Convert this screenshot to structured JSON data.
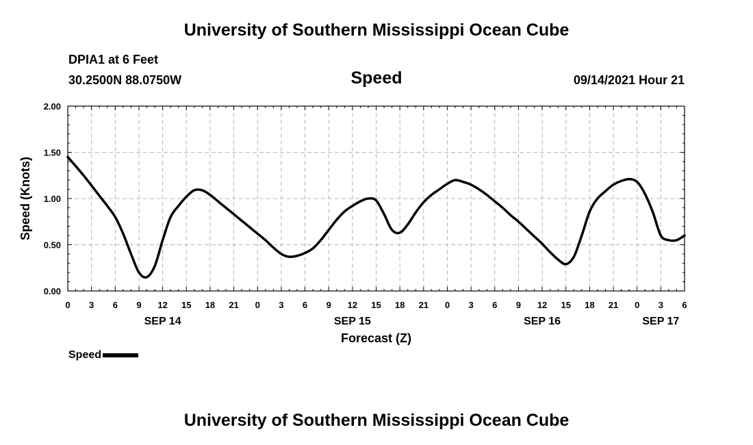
{
  "header": {
    "org_title": "University of Southern Mississippi Ocean Cube",
    "station": "DPIA1 at 6 Feet",
    "coords": "30.2500N  88.0750W",
    "datetime": "09/14/2021 Hour 21"
  },
  "footer": {
    "org_title": "University of Southern Mississippi Ocean Cube"
  },
  "legend": {
    "label": "Speed"
  },
  "chart_data": {
    "type": "line",
    "title": "Speed",
    "xlabel": "Forecast (Z)",
    "ylabel": "Speed (Knots)",
    "ylim": [
      0,
      2
    ],
    "xlim": [
      0,
      78
    ],
    "x_unit": "hours since SEP 14 00Z",
    "y_ticks": [
      "0.00",
      "0.50",
      "1.00",
      "1.50",
      "2.00"
    ],
    "y_tick_values": [
      0,
      0.5,
      1,
      1.5,
      2
    ],
    "x_tick_labels": [
      "0",
      "3",
      "6",
      "9",
      "12",
      "15",
      "18",
      "21",
      "0",
      "3",
      "6",
      "9",
      "12",
      "15",
      "18",
      "21",
      "0",
      "3",
      "6",
      "9",
      "12",
      "15",
      "18",
      "21",
      "0",
      "3",
      "6"
    ],
    "day_labels": [
      {
        "label": "SEP 14",
        "hour": 12
      },
      {
        "label": "SEP 15",
        "hour": 36
      },
      {
        "label": "SEP 16",
        "hour": 60
      },
      {
        "label": "SEP 17",
        "hour": 75
      }
    ],
    "grid": true,
    "series": [
      {
        "name": "Speed",
        "color": "#000000",
        "x": [
          0,
          2,
          4,
          5,
          6,
          7,
          8,
          9,
          10,
          11,
          12,
          13,
          14,
          15,
          16,
          17,
          18,
          19,
          20,
          21,
          22,
          23,
          24,
          25,
          26,
          27,
          28,
          29,
          30,
          31,
          32,
          33,
          34,
          35,
          36,
          37,
          38,
          39,
          40,
          41,
          42,
          43,
          44,
          45,
          46,
          47,
          48,
          49,
          50,
          51,
          52,
          53,
          54,
          55,
          56,
          57,
          58,
          59,
          60,
          61,
          62,
          63,
          64,
          65,
          66,
          67,
          68,
          69,
          70,
          71,
          72,
          73,
          74,
          75,
          76,
          77,
          78
        ],
        "y": [
          1.45,
          1.25,
          1.03,
          0.92,
          0.8,
          0.62,
          0.4,
          0.2,
          0.15,
          0.27,
          0.55,
          0.8,
          0.92,
          1.02,
          1.09,
          1.09,
          1.04,
          0.97,
          0.9,
          0.83,
          0.76,
          0.69,
          0.62,
          0.55,
          0.47,
          0.4,
          0.37,
          0.38,
          0.41,
          0.46,
          0.55,
          0.66,
          0.77,
          0.86,
          0.92,
          0.97,
          1.0,
          0.98,
          0.83,
          0.66,
          0.63,
          0.72,
          0.85,
          0.96,
          1.04,
          1.1,
          1.16,
          1.2,
          1.18,
          1.15,
          1.1,
          1.04,
          0.97,
          0.9,
          0.82,
          0.75,
          0.67,
          0.59,
          0.51,
          0.42,
          0.34,
          0.29,
          0.37,
          0.6,
          0.86,
          1.0,
          1.08,
          1.15,
          1.19,
          1.21,
          1.18,
          1.05,
          0.85,
          0.6,
          0.55,
          0.55,
          0.6
        ]
      }
    ]
  }
}
